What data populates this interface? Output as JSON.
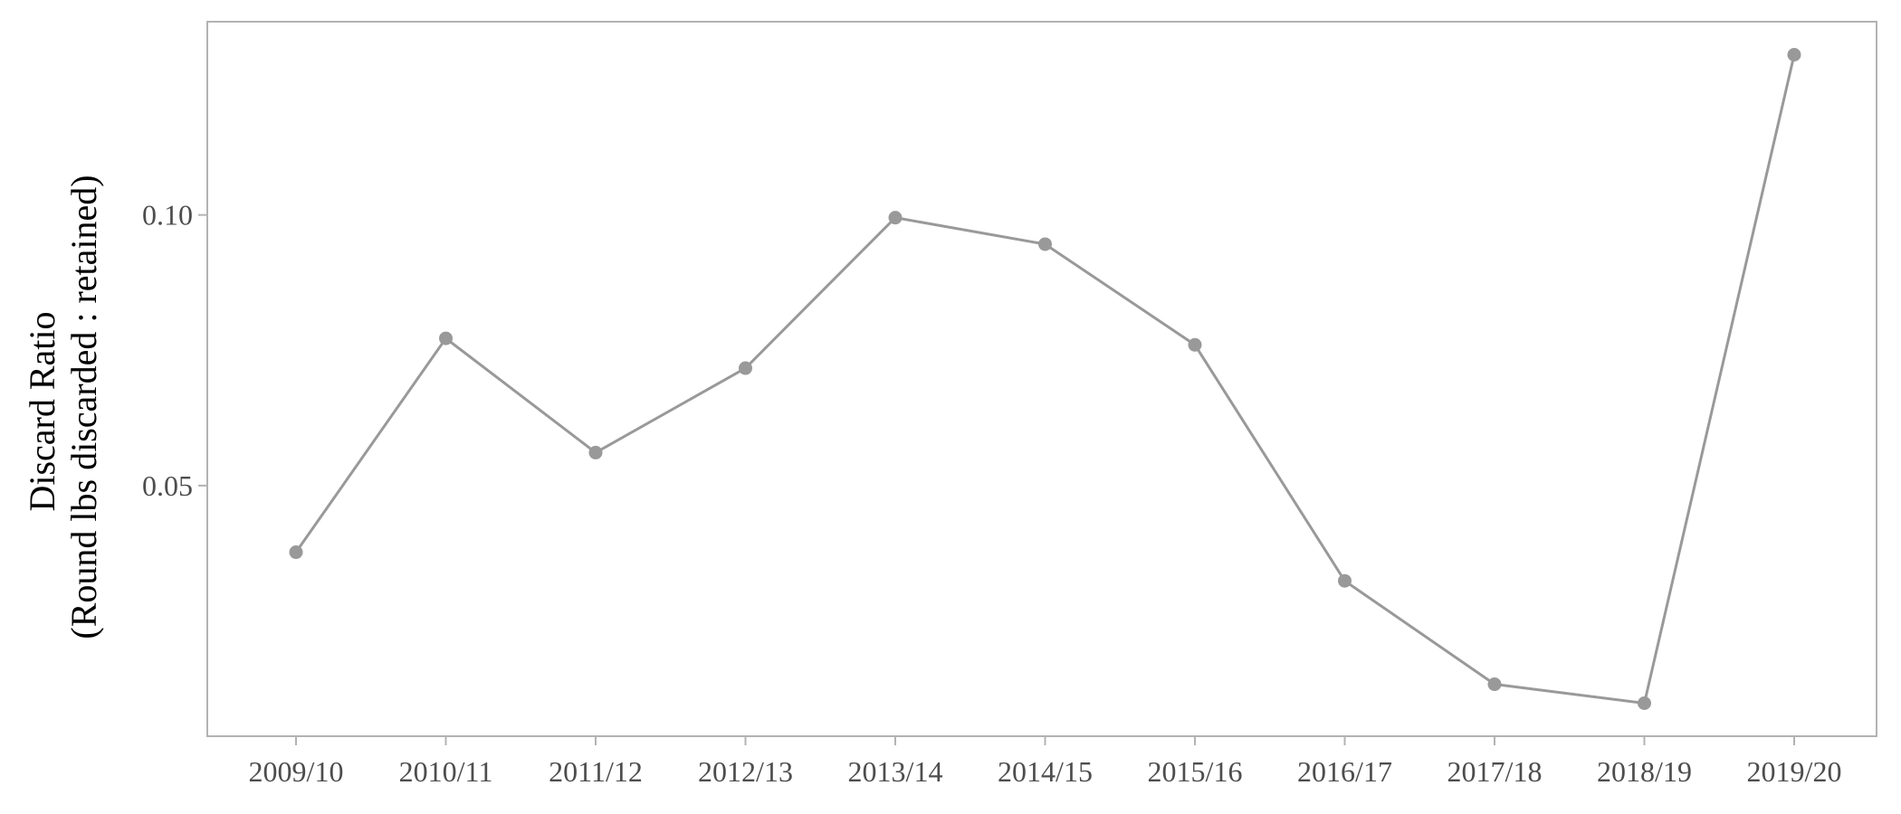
{
  "chart_data": {
    "type": "line",
    "title": "",
    "xlabel": "",
    "ylabel": "Discard Ratio",
    "ylabel_line2": "(Round lbs discarded : retained)",
    "categories": [
      "2009/10",
      "2010/11",
      "2011/12",
      "2012/13",
      "2013/14",
      "2014/15",
      "2015/16",
      "2016/17",
      "2017/18",
      "2018/19",
      "2019/20"
    ],
    "series": [
      {
        "values": [
          0.0377,
          0.0772,
          0.0561,
          0.0717,
          0.0995,
          0.0946,
          0.076,
          0.0324,
          0.0133,
          0.0098,
          0.1296
        ]
      }
    ],
    "yticks": [
      0.05,
      0.1
    ],
    "ytick_labels": [
      "0.05",
      "0.10"
    ],
    "ylim": [
      0.0037,
      0.1357
    ],
    "grid": false,
    "legend": "none",
    "colors": {
      "series": "#999999",
      "frame": "#b3b3b3",
      "tick_text": "#4d4d4d",
      "title_text": "#000000"
    }
  }
}
